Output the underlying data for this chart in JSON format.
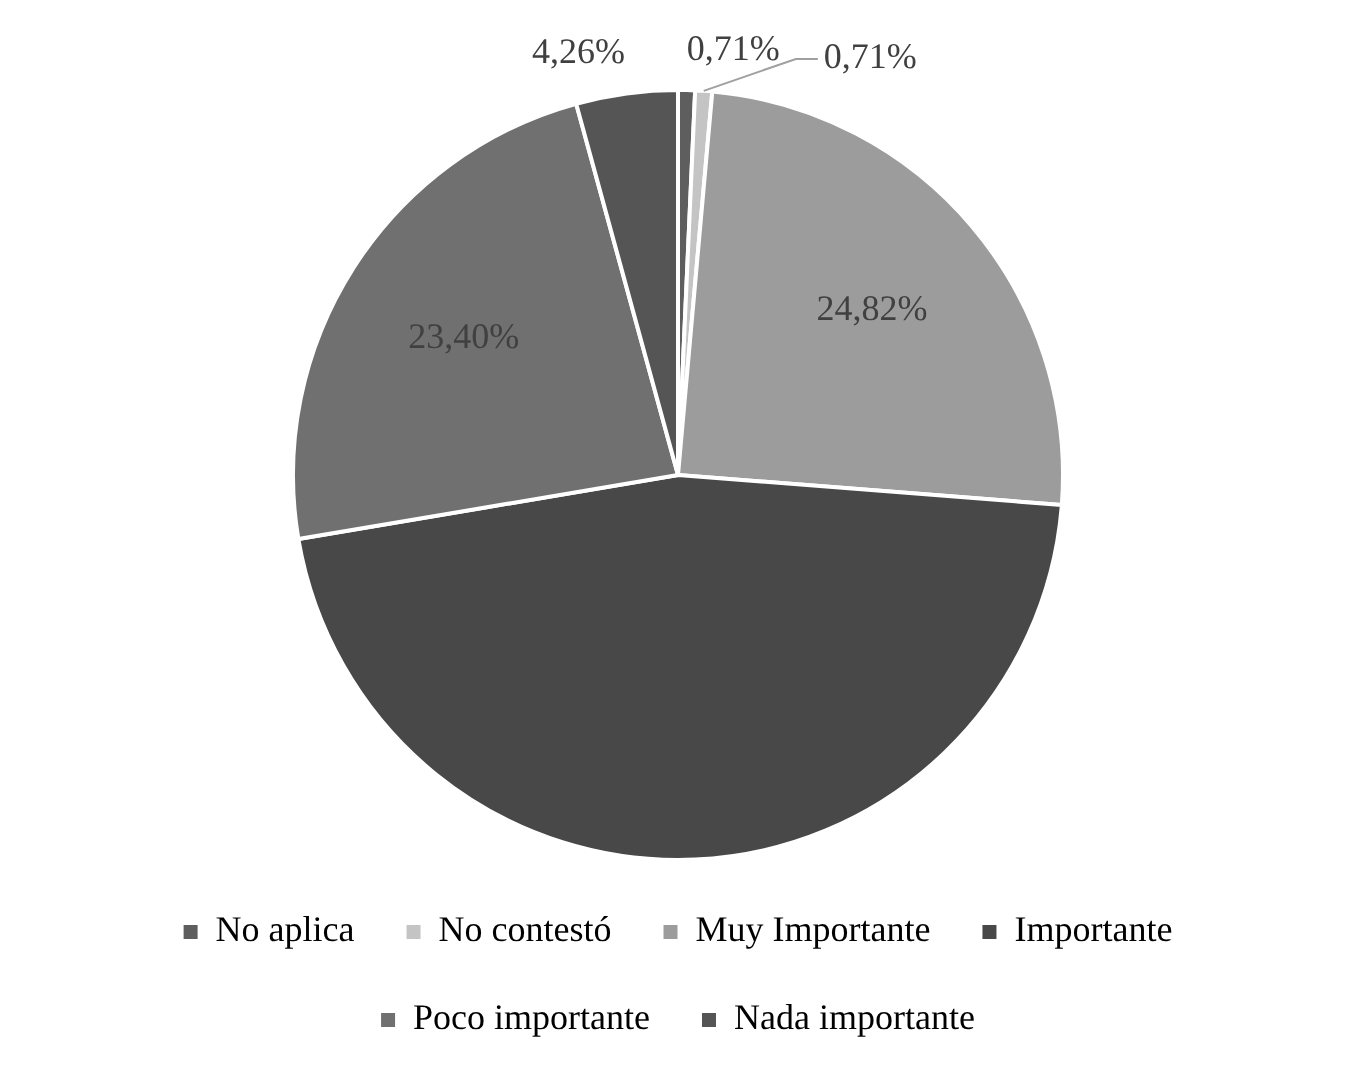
{
  "chart_data": {
    "type": "pie",
    "categories": [
      "No aplica",
      "No contestó",
      "Muy Importante",
      "Importante",
      "Poco importante",
      "Nada importante"
    ],
    "values": [
      0.71,
      0.71,
      24.82,
      46.1,
      23.4,
      4.26
    ],
    "colors": [
      "#5e5e5e",
      "#c4c4c4",
      "#9c9c9c",
      "#484848",
      "#707070",
      "#555555"
    ],
    "value_labels": [
      "0,71%",
      "0,71%",
      "24,82%",
      null,
      "23,40%",
      "4,26%"
    ],
    "legend": "bottom"
  }
}
